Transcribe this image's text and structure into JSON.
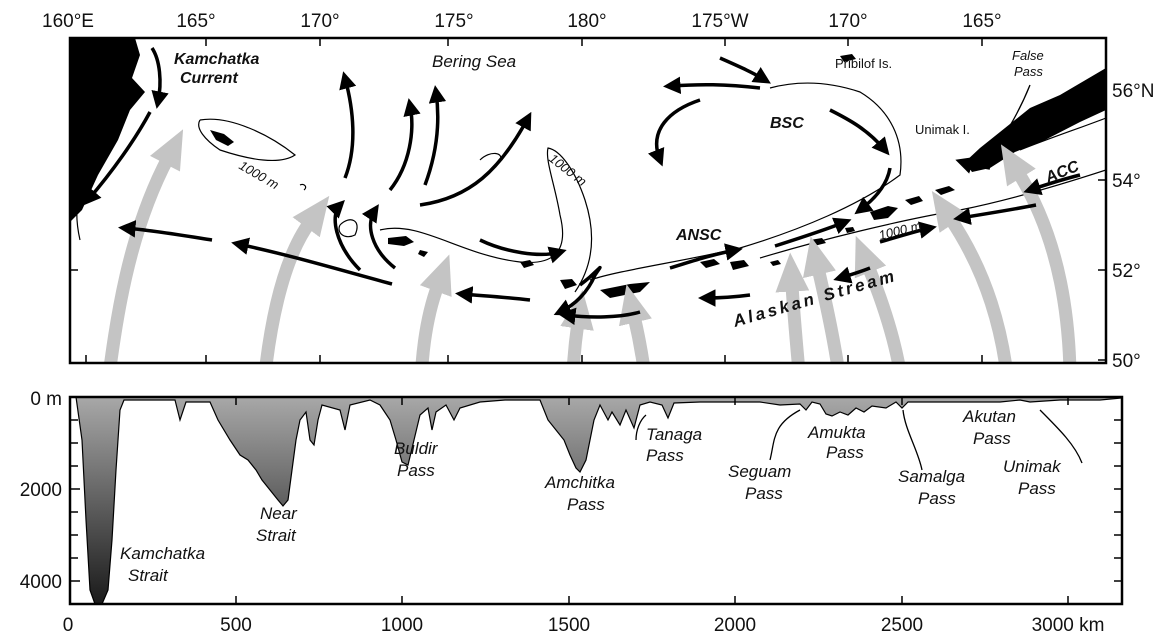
{
  "map": {
    "lon_labels": [
      "160°E",
      "165°",
      "170°",
      "175°",
      "180°",
      "175°W",
      "170°",
      "165°"
    ],
    "lat_labels": [
      "56°N",
      "54°",
      "52°",
      "50°"
    ],
    "features": {
      "kamchatka_current": [
        "Kamchatka",
        "Current"
      ],
      "bering_sea": "Bering Sea",
      "pribilof": "Pribilof Is.",
      "false_pass": [
        "False",
        "Pass"
      ],
      "bsc": "BSC",
      "unimak_island": "Unimak I.",
      "acc": "ACC",
      "ansc": "ANSC",
      "alaskan_stream": "Alaskan Stream",
      "isobath": "1000 m"
    }
  },
  "profile": {
    "depth_labels": [
      "0 m",
      "2000",
      "4000"
    ],
    "distance_labels": [
      "0",
      "500",
      "1000",
      "1500",
      "2000",
      "2500",
      "3000 km"
    ],
    "passes": {
      "kamchatka_strait": [
        "Kamchatka",
        "Strait"
      ],
      "near_strait": [
        "Near",
        "Strait"
      ],
      "buldir_pass": [
        "Buldir",
        "Pass"
      ],
      "amchitka_pass": [
        "Amchitka",
        "Pass"
      ],
      "tanaga_pass": [
        "Tanaga",
        "Pass"
      ],
      "seguam_pass": [
        "Seguam",
        "Pass"
      ],
      "amukta_pass": [
        "Amukta",
        "Pass"
      ],
      "samalga_pass": [
        "Samalga",
        "Pass"
      ],
      "akutan_pass": [
        "Akutan",
        "Pass"
      ],
      "unimak_pass": [
        "Unimak",
        "Pass"
      ]
    }
  },
  "colors": {
    "flow_arrow": "#c4c4c4",
    "profile_fill_deep": "#1a1a1a",
    "profile_fill_shallow": "#a8a8a8"
  }
}
